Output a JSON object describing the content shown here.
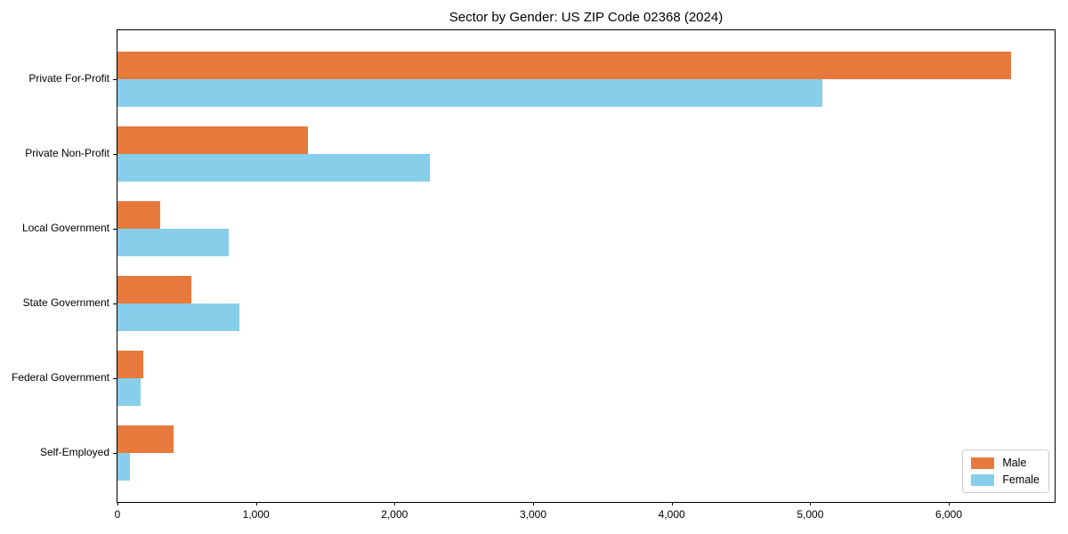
{
  "chart_data": {
    "type": "bar",
    "orientation": "horizontal",
    "title": "Sector by Gender: US ZIP Code 02368 (2024)",
    "categories": [
      "Private For-Profit",
      "Private Non-Profit",
      "Local Government",
      "State Government",
      "Federal Government",
      "Self-Employed"
    ],
    "series": [
      {
        "name": "Male",
        "color": "#E8793D",
        "values": [
          6450,
          1375,
          310,
          535,
          185,
          405
        ]
      },
      {
        "name": "Female",
        "color": "#87CEEB",
        "values": [
          5090,
          2255,
          800,
          880,
          165,
          90
        ]
      }
    ],
    "xlabel": "",
    "ylabel": "",
    "xlim": [
      0,
      6777
    ],
    "x_ticks": [
      0,
      1000,
      2000,
      3000,
      4000,
      5000,
      6000
    ],
    "x_tick_labels": [
      "0",
      "1,000",
      "2,000",
      "3,000",
      "4,000",
      "5,000",
      "6,000"
    ],
    "legend_position": "lower right",
    "grid": false
  }
}
